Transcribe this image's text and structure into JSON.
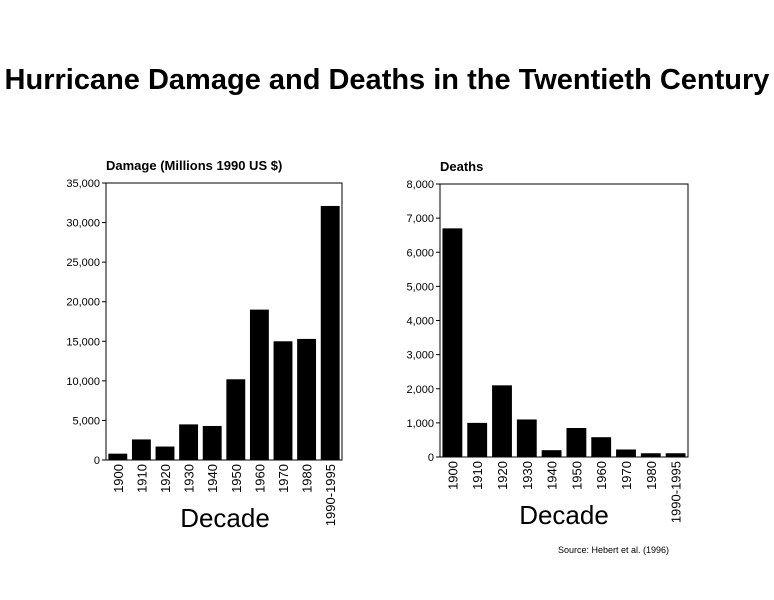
{
  "title": "Hurricane Damage and Deaths in the Twentieth Century",
  "source": "Source: Hebert et al. (1996)",
  "colors": {
    "bar": "#000000",
    "axis": "#000000",
    "background": "#ffffff"
  },
  "chart_data": [
    {
      "type": "bar",
      "title": "Damage (Millions 1990 US $)",
      "xlabel": "Decade",
      "ylabel": "",
      "categories": [
        "1900",
        "1910",
        "1920",
        "1930",
        "1940",
        "1950",
        "1960",
        "1970",
        "1980",
        "1990-1995"
      ],
      "values": [
        800,
        2600,
        1700,
        4500,
        4300,
        10200,
        19000,
        15000,
        15300,
        32100
      ],
      "ylim": [
        0,
        35000
      ],
      "yticks": [
        0,
        5000,
        10000,
        15000,
        20000,
        25000,
        30000,
        35000
      ],
      "ytick_labels": [
        "0",
        "5,000",
        "10,000",
        "15,000",
        "20,000",
        "25,000",
        "30,000",
        "35,000"
      ],
      "grid": false,
      "legend": "none"
    },
    {
      "type": "bar",
      "title": "Deaths",
      "xlabel": "Decade",
      "ylabel": "",
      "categories": [
        "1900",
        "1910",
        "1920",
        "1930",
        "1940",
        "1950",
        "1960",
        "1970",
        "1980",
        "1990-1995"
      ],
      "values": [
        6700,
        1000,
        2100,
        1100,
        200,
        850,
        580,
        220,
        110,
        110
      ],
      "ylim": [
        0,
        8000
      ],
      "yticks": [
        0,
        1000,
        2000,
        3000,
        4000,
        5000,
        6000,
        7000,
        8000
      ],
      "ytick_labels": [
        "0",
        "1,000",
        "2,000",
        "3,000",
        "4,000",
        "5,000",
        "6,000",
        "7,000",
        "8,000"
      ],
      "grid": false,
      "legend": "none"
    }
  ]
}
